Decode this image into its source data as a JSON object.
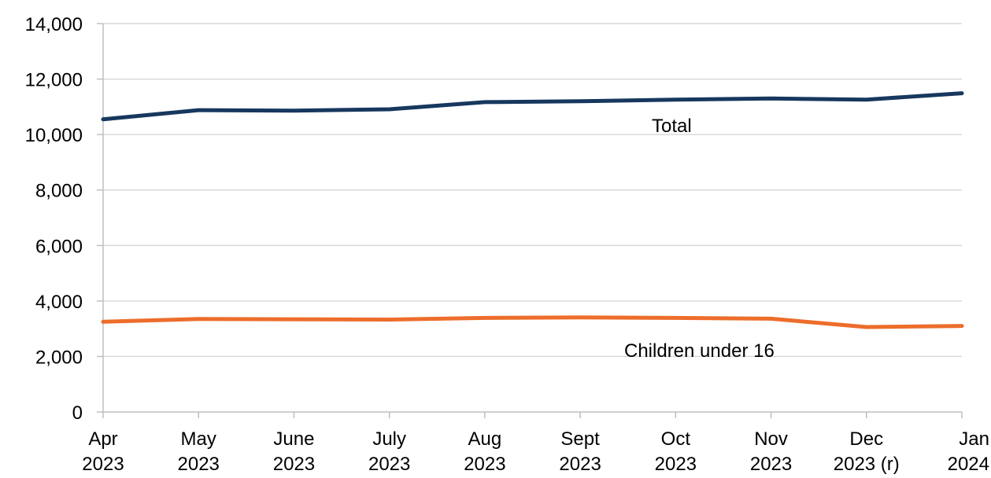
{
  "chart_data": {
    "type": "line",
    "categories": [
      [
        "Apr",
        "2023"
      ],
      [
        "May",
        "2023"
      ],
      [
        "June",
        "2023"
      ],
      [
        "July",
        "2023"
      ],
      [
        "Aug",
        "2023"
      ],
      [
        "Sept",
        "2023"
      ],
      [
        "Oct",
        "2023"
      ],
      [
        "Nov",
        "2023"
      ],
      [
        "Dec",
        "2023 (r)"
      ],
      [
        "Jan",
        "2024"
      ]
    ],
    "series": [
      {
        "name": "Total",
        "color": "#17375e",
        "values": [
          10550,
          10880,
          10860,
          10910,
          11170,
          11200,
          11260,
          11300,
          11260,
          11490
        ]
      },
      {
        "name": "Children under 16",
        "color": "#ed6d2b",
        "values": [
          3250,
          3350,
          3340,
          3330,
          3390,
          3410,
          3390,
          3360,
          3060,
          3100
        ]
      }
    ],
    "yticks": [
      "0",
      "2,000",
      "4,000",
      "6,000",
      "8,000",
      "10,000",
      "12,000",
      "14,000"
    ],
    "ylim": [
      0,
      14000
    ],
    "ystep": 2000,
    "grid": true,
    "gridColor": "#d9d9d9",
    "axisColor": "#bfbfbf",
    "legend": "inline labels"
  }
}
